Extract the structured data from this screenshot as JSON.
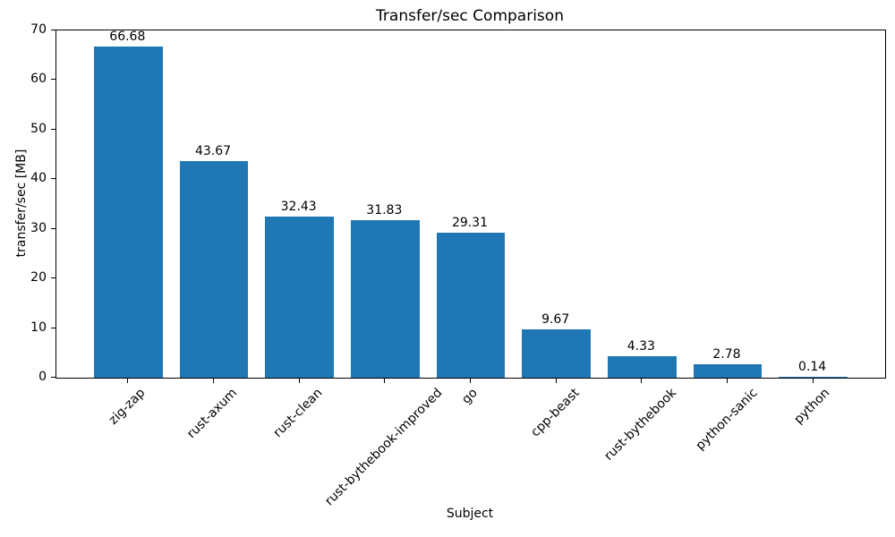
{
  "chart_data": {
    "type": "bar",
    "title": "Transfer/sec Comparison",
    "xlabel": "Subject",
    "ylabel": "transfer/sec [MB]",
    "categories": [
      "zig-zap",
      "rust-axum",
      "rust-clean",
      "rust-bythebook-improved",
      "go",
      "cpp-beast",
      "rust-bythebook",
      "python-sanic",
      "python"
    ],
    "values": [
      66.68,
      43.67,
      32.43,
      31.83,
      29.31,
      9.67,
      4.33,
      2.78,
      0.14
    ],
    "value_labels": [
      "66.68",
      "43.67",
      "32.43",
      "31.83",
      "29.31",
      "9.67",
      "4.33",
      "2.78",
      "0.14"
    ],
    "ylim": [
      0,
      70
    ],
    "yticks": [
      0,
      10,
      20,
      30,
      40,
      50,
      60,
      70
    ],
    "bar_color": "#1f77b4",
    "grid": false,
    "legend": false,
    "x_tick_rotation_deg": 45
  }
}
